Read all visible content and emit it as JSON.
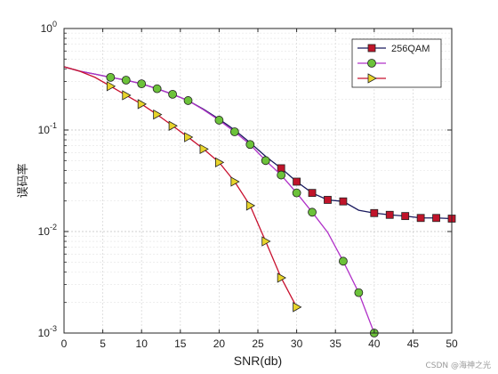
{
  "chart_data": {
    "type": "line",
    "title": "",
    "xlabel": "SNR(db)",
    "ylabel": "误码率",
    "xlim": [
      0,
      50
    ],
    "ylim": [
      0.001,
      1
    ],
    "yscale": "log",
    "grid": true,
    "legend_position": "top-right",
    "x_ticks": [
      "0",
      "5",
      "10",
      "15",
      "20",
      "25",
      "30",
      "35",
      "40",
      "45",
      "50"
    ],
    "y_ticks": [
      {
        "value": 1,
        "base": "10",
        "exp": "0"
      },
      {
        "value": 0.1,
        "base": "10",
        "exp": "-1"
      },
      {
        "value": 0.01,
        "base": "10",
        "exp": "-2"
      },
      {
        "value": 0.001,
        "base": "10",
        "exp": "-3"
      }
    ],
    "series": [
      {
        "name": "256QAM",
        "color": "#1a1a5e",
        "marker": "square",
        "marker_color": "#c0142a",
        "x": [
          0,
          2,
          4,
          6,
          8,
          10,
          12,
          14,
          16,
          18,
          20,
          22,
          24,
          26,
          28,
          30,
          32,
          34,
          36,
          38,
          40,
          42,
          44,
          46,
          48,
          50
        ],
        "y": [
          0.42,
          0.38,
          0.355,
          0.33,
          0.31,
          0.285,
          0.255,
          0.225,
          0.195,
          0.16,
          0.128,
          0.1,
          0.075,
          0.055,
          0.042,
          0.031,
          0.024,
          0.0205,
          0.0198,
          0.0162,
          0.0152,
          0.0146,
          0.0142,
          0.0136,
          0.0136,
          0.0134
        ],
        "marker_x": [
          28,
          30,
          32,
          34,
          36,
          40,
          42,
          44,
          46,
          48,
          50
        ],
        "marker_y": [
          0.042,
          0.031,
          0.024,
          0.0205,
          0.0198,
          0.0152,
          0.0146,
          0.0142,
          0.0136,
          0.0136,
          0.0134
        ]
      },
      {
        "name": "",
        "color": "#b030c8",
        "marker": "circle",
        "marker_color": "#6cc23a",
        "x": [
          0,
          2,
          4,
          6,
          8,
          10,
          12,
          14,
          16,
          18,
          20,
          22,
          24,
          26,
          28,
          30,
          32,
          34,
          36,
          38,
          40
        ],
        "y": [
          0.42,
          0.38,
          0.355,
          0.33,
          0.31,
          0.285,
          0.255,
          0.225,
          0.195,
          0.158,
          0.125,
          0.096,
          0.072,
          0.05,
          0.036,
          0.024,
          0.0155,
          0.0098,
          0.0051,
          0.0025,
          0.001
        ],
        "marker_x": [
          6,
          8,
          10,
          12,
          14,
          16,
          20,
          22,
          24,
          26,
          28,
          30,
          32,
          36,
          38,
          40
        ],
        "marker_y": [
          0.33,
          0.31,
          0.285,
          0.255,
          0.225,
          0.195,
          0.125,
          0.096,
          0.072,
          0.05,
          0.036,
          0.024,
          0.0155,
          0.0051,
          0.0025,
          0.001
        ]
      },
      {
        "name": "",
        "color": "#c8102e",
        "marker": "triangle-right",
        "marker_color": "#e8d42a",
        "x": [
          0,
          2,
          4,
          6,
          8,
          10,
          12,
          14,
          16,
          18,
          20,
          22,
          24,
          26,
          28,
          30
        ],
        "y": [
          0.42,
          0.38,
          0.33,
          0.27,
          0.22,
          0.18,
          0.142,
          0.11,
          0.085,
          0.065,
          0.048,
          0.031,
          0.018,
          0.008,
          0.0035,
          0.0018
        ],
        "marker_x": [
          6,
          8,
          10,
          12,
          14,
          16,
          18,
          20,
          22,
          24,
          26,
          28,
          30
        ],
        "marker_y": [
          0.27,
          0.22,
          0.18,
          0.142,
          0.11,
          0.085,
          0.065,
          0.048,
          0.031,
          0.018,
          0.008,
          0.0035,
          0.0018
        ]
      }
    ]
  },
  "watermark": "CSDN @海神之光"
}
